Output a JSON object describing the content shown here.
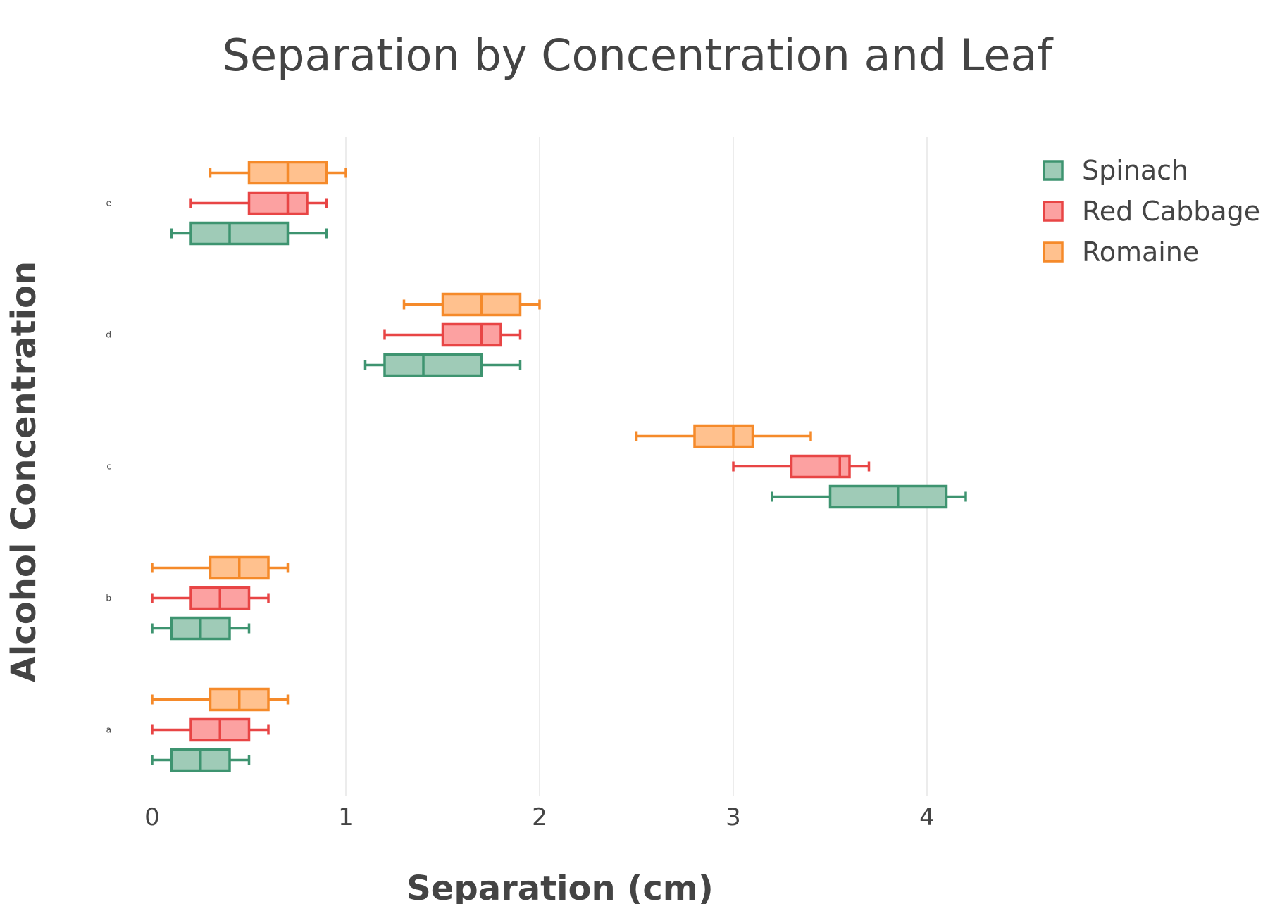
{
  "chart_data": {
    "type": "box",
    "orientation": "horizontal",
    "title": "Separation by Concentration and Leaf",
    "xlabel": "Separation (cm)",
    "ylabel": "Alcohol Concentration",
    "xlim": [
      0,
      4.3
    ],
    "x_ticks": [
      "0",
      "1",
      "2",
      "3",
      "4"
    ],
    "categories": [
      "a",
      "b",
      "c",
      "d",
      "e"
    ],
    "grid": true,
    "legend_position": "top-right",
    "series": [
      {
        "name": "Spinach",
        "color": "#3e9470",
        "fill": "#9fcbb7",
        "boxes": [
          {
            "category": "a",
            "min": 0.0,
            "q1": 0.1,
            "median": 0.25,
            "q3": 0.4,
            "max": 0.5
          },
          {
            "category": "b",
            "min": 0.0,
            "q1": 0.1,
            "median": 0.25,
            "q3": 0.4,
            "max": 0.5
          },
          {
            "category": "c",
            "min": 3.2,
            "q1": 3.5,
            "median": 3.85,
            "q3": 4.1,
            "max": 4.2
          },
          {
            "category": "d",
            "min": 1.1,
            "q1": 1.2,
            "median": 1.4,
            "q3": 1.7,
            "max": 1.9
          },
          {
            "category": "e",
            "min": 0.1,
            "q1": 0.2,
            "median": 0.4,
            "q3": 0.7,
            "max": 0.9
          }
        ]
      },
      {
        "name": "Red Cabbage",
        "color": "#e84545",
        "fill": "#fca1a1",
        "boxes": [
          {
            "category": "a",
            "min": 0.0,
            "q1": 0.2,
            "median": 0.35,
            "q3": 0.5,
            "max": 0.6
          },
          {
            "category": "b",
            "min": 0.0,
            "q1": 0.2,
            "median": 0.35,
            "q3": 0.5,
            "max": 0.6
          },
          {
            "category": "c",
            "min": 3.0,
            "q1": 3.3,
            "median": 3.55,
            "q3": 3.6,
            "max": 3.7
          },
          {
            "category": "d",
            "min": 1.2,
            "q1": 1.5,
            "median": 1.7,
            "q3": 1.8,
            "max": 1.9
          },
          {
            "category": "e",
            "min": 0.2,
            "q1": 0.5,
            "median": 0.7,
            "q3": 0.8,
            "max": 0.9
          }
        ]
      },
      {
        "name": "Romaine",
        "color": "#f58a2a",
        "fill": "#ffc18e",
        "boxes": [
          {
            "category": "a",
            "min": 0.0,
            "q1": 0.3,
            "median": 0.45,
            "q3": 0.6,
            "max": 0.7
          },
          {
            "category": "b",
            "min": 0.0,
            "q1": 0.3,
            "median": 0.45,
            "q3": 0.6,
            "max": 0.7
          },
          {
            "category": "c",
            "min": 2.5,
            "q1": 2.8,
            "median": 3.0,
            "q3": 3.1,
            "max": 3.4
          },
          {
            "category": "d",
            "min": 1.3,
            "q1": 1.5,
            "median": 1.7,
            "q3": 1.9,
            "max": 2.0
          },
          {
            "category": "e",
            "min": 0.3,
            "q1": 0.5,
            "median": 0.7,
            "q3": 0.9,
            "max": 1.0
          }
        ]
      }
    ]
  }
}
